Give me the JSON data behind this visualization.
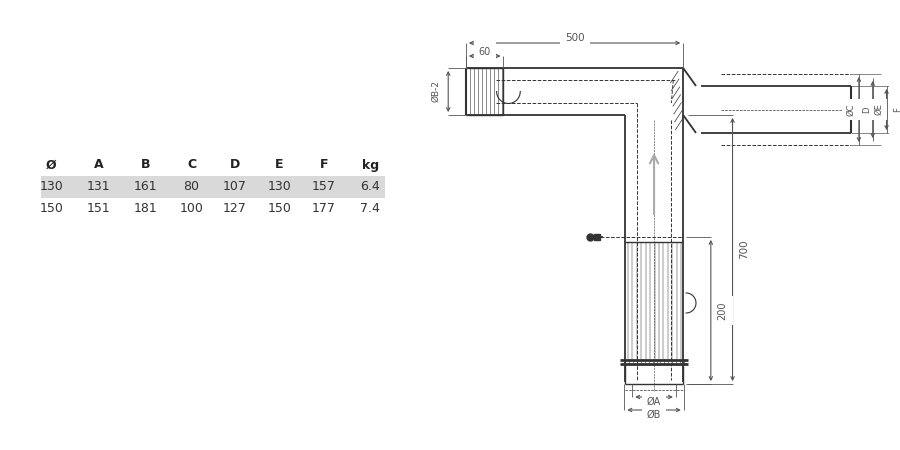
{
  "bg_color": "#ffffff",
  "line_color": "#333333",
  "dim_color": "#555555",
  "table_headers": [
    "Ø",
    "A",
    "B",
    "C",
    "D",
    "E",
    "F",
    "kg"
  ],
  "table_row1": [
    "130",
    "131",
    "161",
    "80",
    "107",
    "130",
    "157",
    "6.4"
  ],
  "table_row2": [
    "150",
    "151",
    "181",
    "100",
    "127",
    "150",
    "177",
    "7.4"
  ],
  "dim_500": "500",
  "dim_60": "60",
  "dim_700": "700",
  "dim_200": "200",
  "dim_B2": "ØB-2",
  "dim_C": "ØC",
  "dim_D": "D",
  "dim_E": "ØE",
  "dim_F": "F",
  "dim_A": "ØA",
  "dim_B": "ØB"
}
